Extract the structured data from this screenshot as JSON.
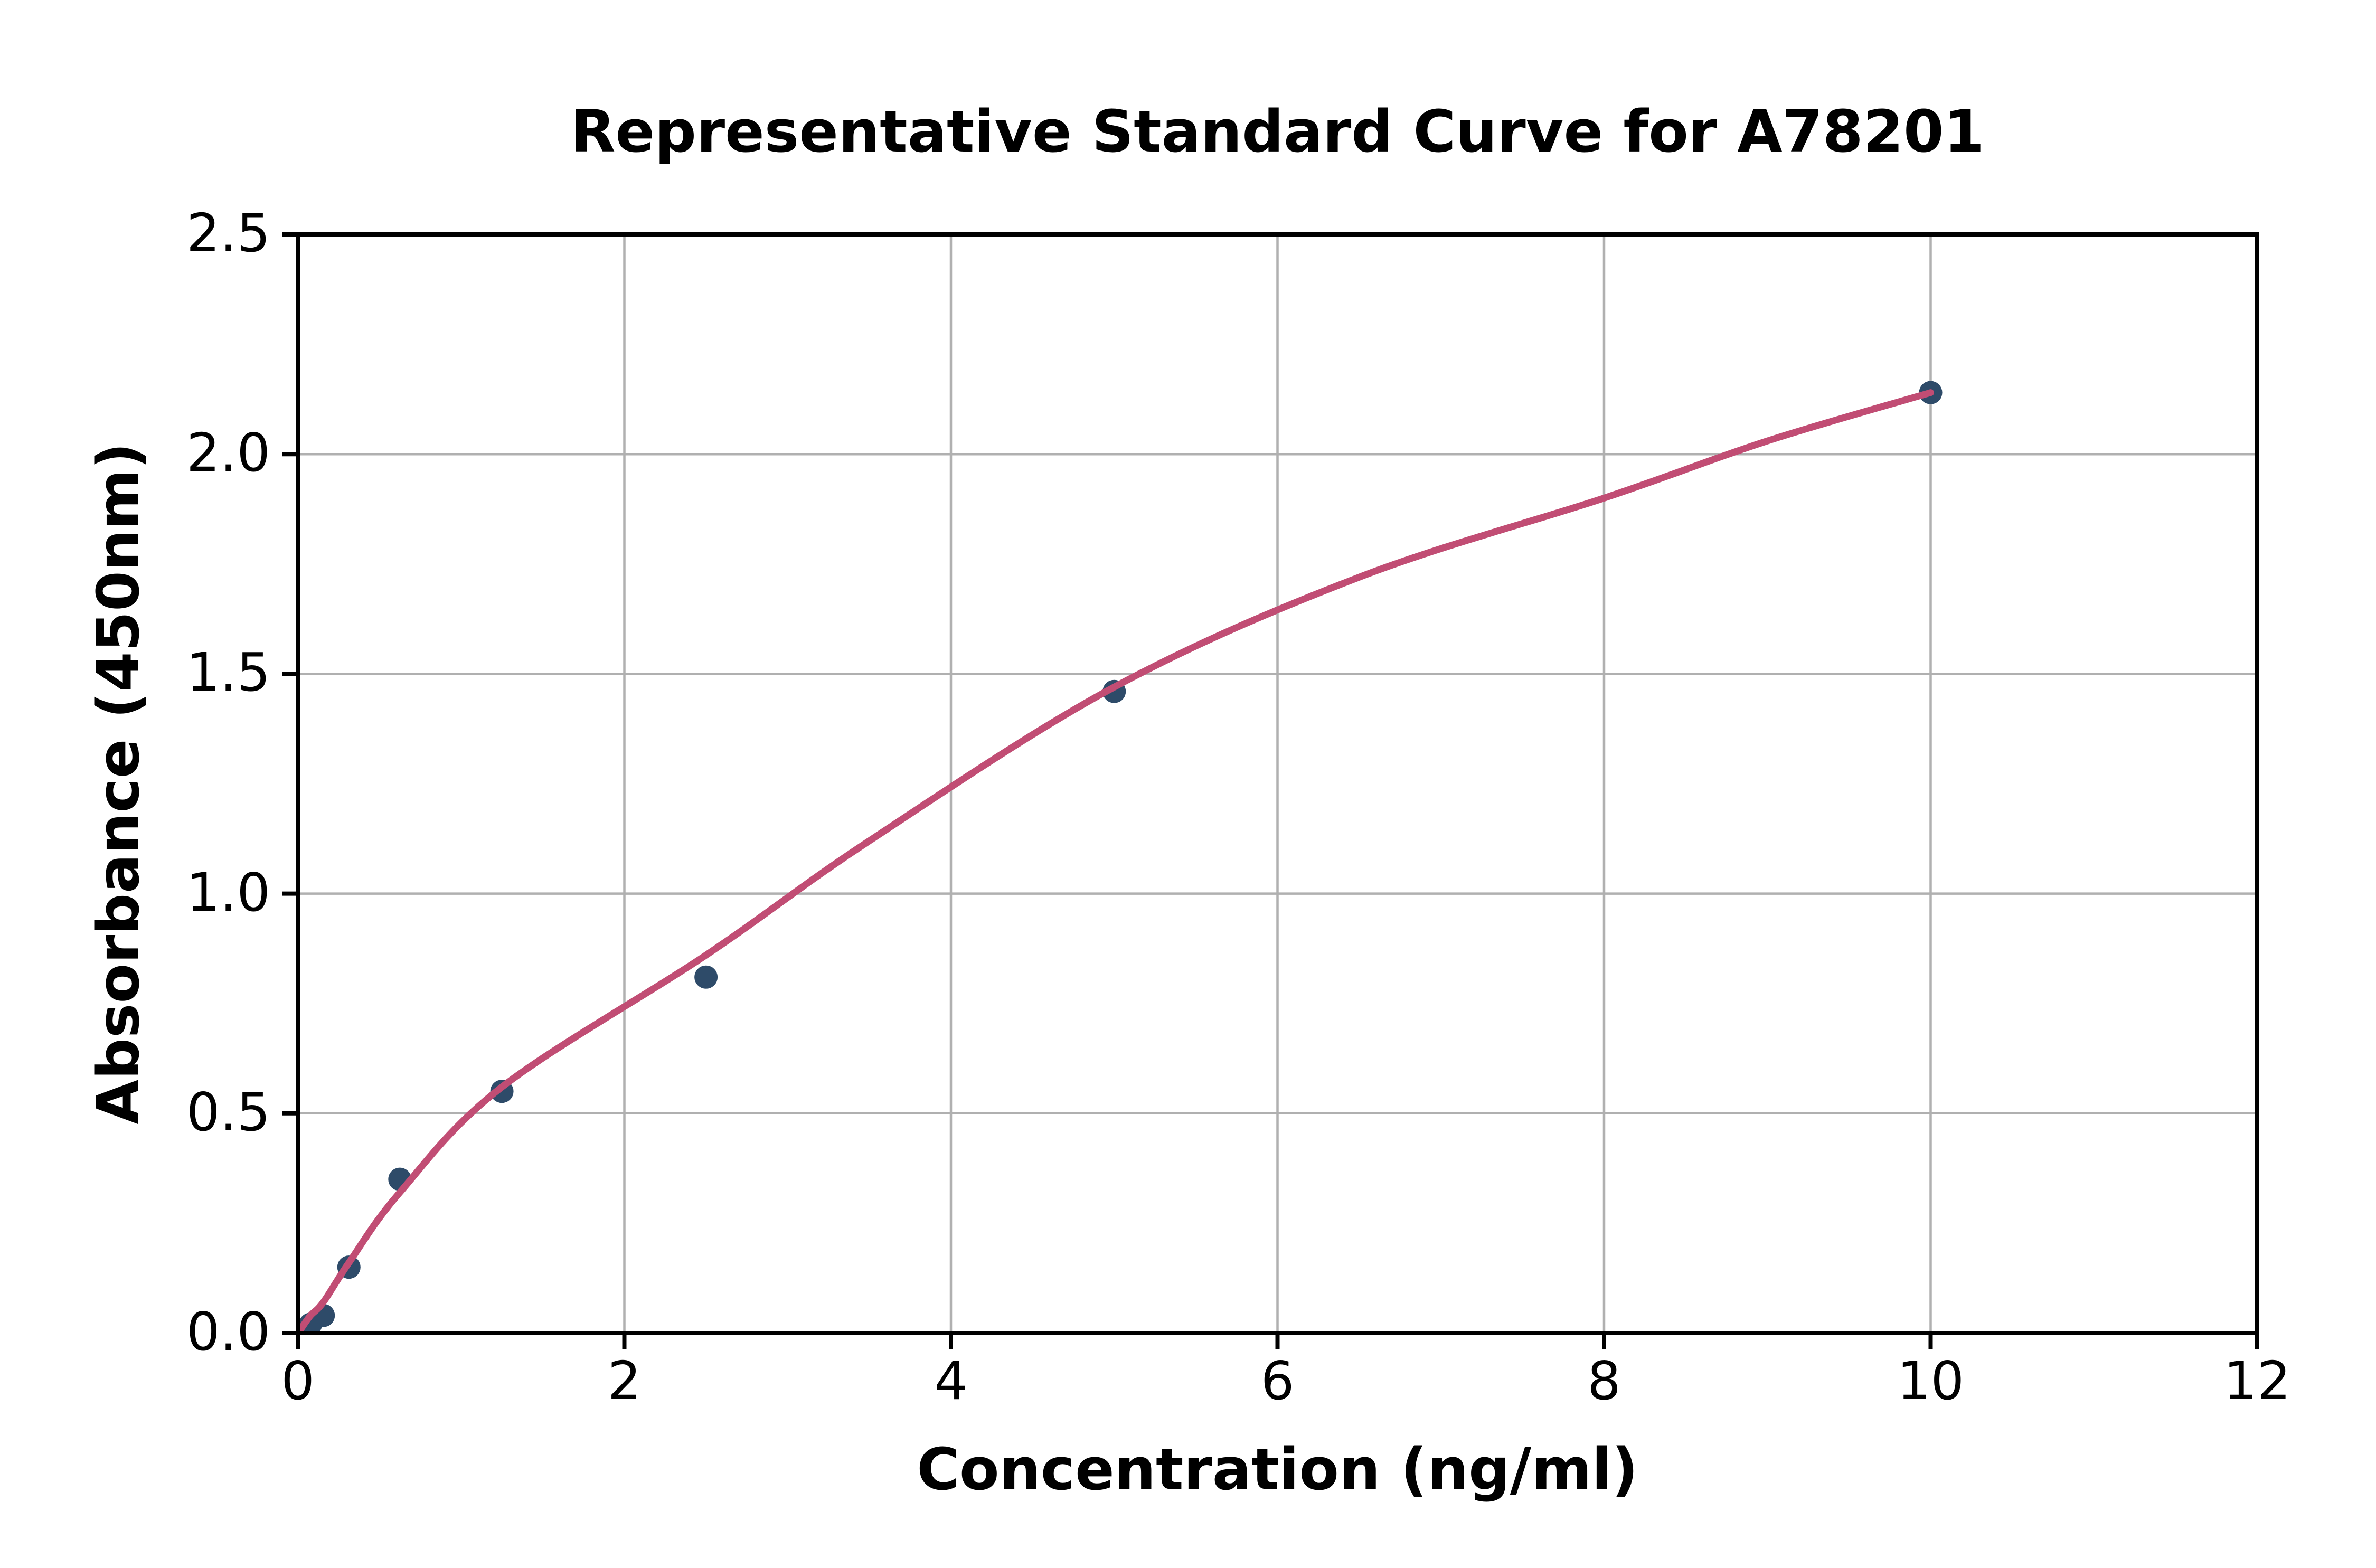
{
  "title": "Representative Standard Curve for A78201",
  "chart_data": {
    "type": "scatter",
    "title": "Representative Standard Curve for A78201",
    "xlabel": "Concentration (ng/ml)",
    "ylabel": "Absorbance (450nm)",
    "xlim": [
      0,
      12
    ],
    "ylim": [
      0,
      2.5
    ],
    "grid": true,
    "legend": "none",
    "x_ticks": {
      "values": [
        0,
        2,
        4,
        6,
        8,
        10,
        12
      ],
      "labels": [
        "0",
        "2",
        "4",
        "6",
        "8",
        "10",
        "12"
      ]
    },
    "y_ticks": {
      "values": [
        0,
        0.5,
        1,
        1.5,
        2,
        2.5
      ],
      "labels": [
        "0.0",
        "0.5",
        "1.0",
        "1.5",
        "2.0",
        "2.5"
      ]
    },
    "series": [
      {
        "name": "standard-points",
        "type": "scatter",
        "marker": "circle",
        "color": "#2e4b69",
        "points": [
          [
            0.078,
            0.02
          ],
          [
            0.156,
            0.04
          ],
          [
            0.313,
            0.15
          ],
          [
            0.625,
            0.35
          ],
          [
            1.25,
            0.55
          ],
          [
            2.5,
            0.81
          ],
          [
            5,
            1.46
          ],
          [
            10,
            2.14
          ]
        ]
      },
      {
        "name": "fitted-curve",
        "type": "line",
        "color": "#c14d74",
        "points": [
          [
            0.02,
            0.01
          ],
          [
            0.078,
            0.04
          ],
          [
            0.156,
            0.07
          ],
          [
            0.313,
            0.16
          ],
          [
            0.625,
            0.32
          ],
          [
            1.25,
            0.56
          ],
          [
            2.5,
            0.86
          ],
          [
            3.5,
            1.12
          ],
          [
            5,
            1.47
          ],
          [
            6.5,
            1.72
          ],
          [
            8,
            1.9
          ],
          [
            9,
            2.03
          ],
          [
            10,
            2.14
          ]
        ]
      }
    ],
    "colors": {
      "grid": "#b0b0b0",
      "axis": "#000000",
      "text": "#000000",
      "background": "#ffffff"
    }
  }
}
